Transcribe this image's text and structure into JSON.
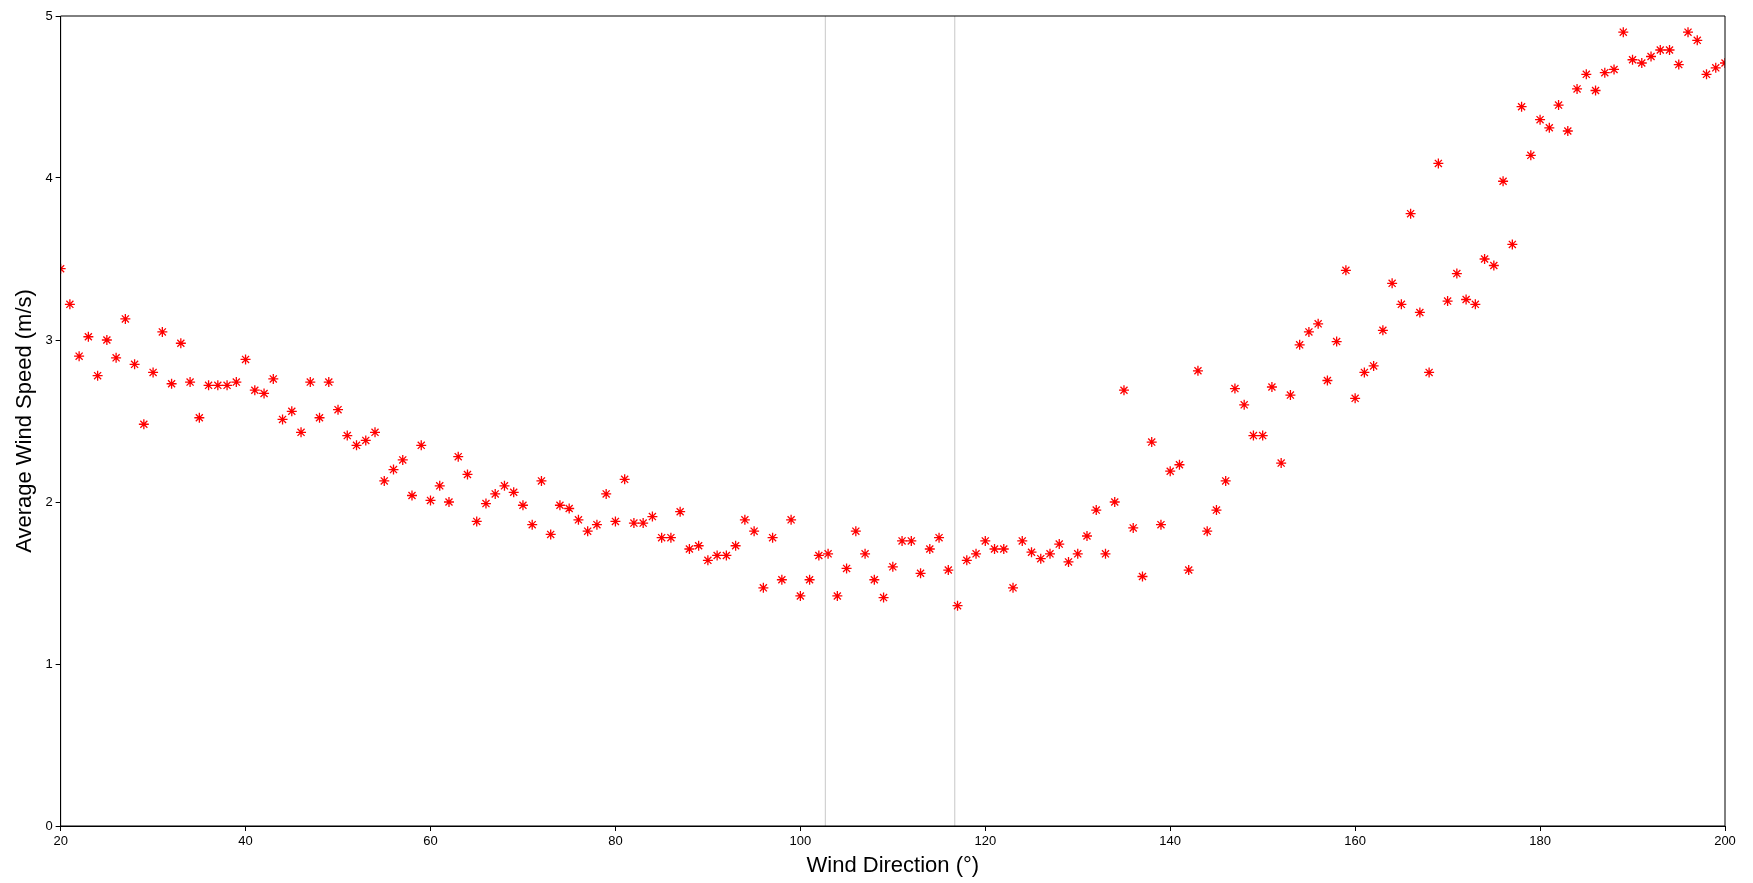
{
  "chart_data": {
    "type": "scatter",
    "xlabel": "Wind Direction (°)",
    "ylabel": "Average Wind Speed (m/s)",
    "xlim": [
      20,
      200
    ],
    "xticks": [
      20,
      40,
      60,
      80,
      100,
      120,
      140,
      160,
      180,
      200
    ],
    "ylim": [
      0,
      5
    ],
    "yticks": [
      0,
      1,
      2,
      3,
      4,
      5
    ],
    "grid": false,
    "legend": false,
    "marker": "cross",
    "ref_lines": [
      {
        "axis": "x",
        "value": 102.7,
        "color": "#c8c8c8"
      },
      {
        "axis": "x",
        "value": 116.7,
        "color": "#c8c8c8"
      }
    ],
    "series": [
      {
        "color": "#ff0000",
        "x": [
          20,
          21,
          22,
          23,
          24,
          25,
          26,
          27,
          28,
          29,
          30,
          31,
          32,
          33,
          34,
          35,
          36,
          37,
          38,
          39,
          40,
          41,
          42,
          43,
          44,
          45,
          46,
          47,
          48,
          49,
          50,
          51,
          52,
          53,
          54,
          55,
          56,
          57,
          58,
          59,
          60,
          61,
          62,
          63,
          64,
          65,
          66,
          67,
          68,
          69,
          70,
          71,
          72,
          73,
          74,
          75,
          76,
          77,
          78,
          79,
          80,
          81,
          82,
          83,
          84,
          85,
          86,
          87,
          88,
          89,
          90,
          91,
          92,
          93,
          94,
          95,
          96,
          97,
          98,
          99,
          100,
          101,
          102,
          103,
          104,
          105,
          106,
          107,
          108,
          109,
          110,
          111,
          112,
          113,
          114,
          115,
          116,
          117,
          118,
          119,
          120,
          121,
          122,
          123,
          124,
          125,
          126,
          127,
          128,
          129,
          130,
          131,
          132,
          133,
          134,
          135,
          136,
          137,
          138,
          139,
          140,
          141,
          142,
          143,
          144,
          145,
          146,
          147,
          148,
          149,
          150,
          151,
          152,
          153,
          154,
          155,
          156,
          157,
          158,
          159,
          160,
          161,
          162,
          163,
          164,
          165,
          166,
          167,
          168,
          169,
          170,
          171,
          172,
          173,
          174,
          175,
          176,
          177,
          178,
          179,
          180,
          181,
          182,
          183,
          184,
          185,
          186,
          187,
          188,
          189,
          190,
          191,
          192,
          193,
          194,
          195,
          196,
          197,
          198,
          199,
          200
        ],
        "values": [
          3.44,
          3.22,
          2.9,
          3.02,
          2.78,
          3.0,
          2.89,
          3.13,
          2.85,
          2.48,
          2.8,
          3.05,
          2.73,
          2.98,
          2.74,
          2.52,
          2.72,
          2.72,
          2.72,
          2.74,
          2.88,
          2.69,
          2.67,
          2.76,
          2.51,
          2.56,
          2.43,
          2.74,
          2.52,
          2.74,
          2.57,
          2.41,
          2.35,
          2.38,
          2.43,
          2.13,
          2.2,
          2.26,
          2.04,
          2.35,
          2.01,
          2.1,
          2.0,
          2.28,
          2.17,
          1.88,
          1.99,
          2.05,
          2.1,
          2.06,
          1.98,
          1.86,
          2.13,
          1.8,
          1.98,
          1.96,
          1.89,
          1.82,
          1.86,
          2.05,
          1.88,
          2.14,
          1.87,
          1.87,
          1.91,
          1.78,
          1.78,
          1.94,
          1.71,
          1.73,
          1.64,
          1.67,
          1.67,
          1.73,
          1.89,
          1.82,
          1.47,
          1.78,
          1.52,
          1.89,
          1.42,
          1.52,
          1.67,
          1.68,
          1.42,
          1.59,
          1.82,
          1.68,
          1.52,
          1.41,
          1.6,
          1.76,
          1.76,
          1.56,
          1.71,
          1.78,
          1.58,
          1.36,
          1.64,
          1.68,
          1.76,
          1.71,
          1.71,
          1.47,
          1.76,
          1.69,
          1.65,
          1.68,
          1.74,
          1.63,
          1.68,
          1.79,
          1.95,
          1.68,
          2.0,
          2.69,
          1.84,
          1.54,
          2.37,
          1.86,
          2.19,
          2.23,
          1.58,
          2.81,
          1.82,
          1.95,
          2.13,
          2.7,
          2.6,
          2.41,
          2.41,
          2.71,
          2.24,
          2.66,
          2.97,
          3.05,
          3.1,
          2.75,
          2.99,
          3.43,
          2.64,
          2.8,
          2.84,
          3.06,
          3.35,
          3.22,
          3.78,
          3.17,
          2.8,
          4.09,
          3.24,
          3.41,
          3.25,
          3.22,
          3.5,
          3.46,
          3.98,
          3.59,
          4.44,
          4.14,
          4.36,
          4.31,
          4.45,
          4.29,
          4.55,
          4.64,
          4.54,
          4.65,
          4.67,
          4.9,
          4.73,
          4.71,
          4.75,
          4.79,
          4.79,
          4.7,
          4.9,
          4.85,
          4.64,
          4.68,
          4.71
        ]
      }
    ]
  }
}
